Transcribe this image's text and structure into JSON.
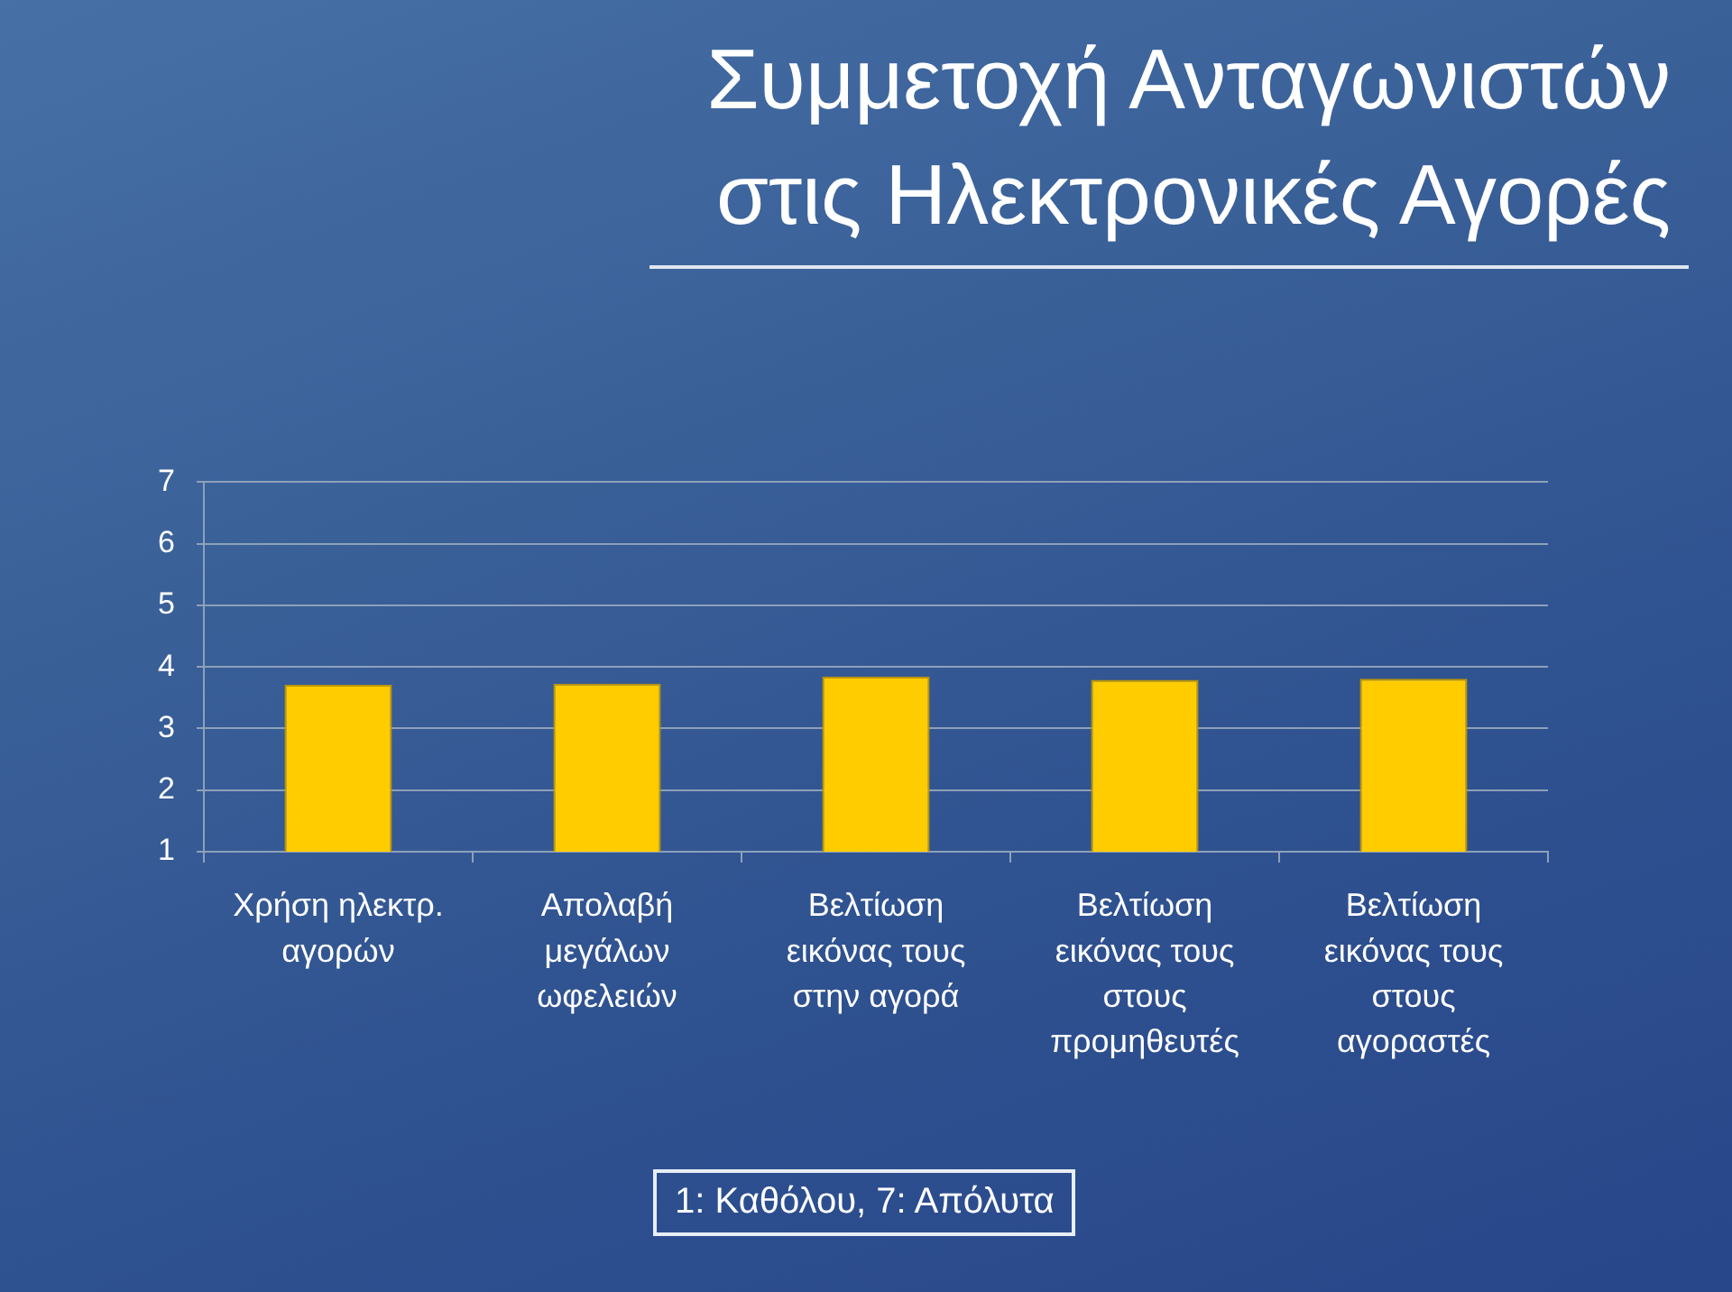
{
  "chart_data": {
    "type": "bar",
    "title": "Συμμετοχή Ανταγωνιστών στις Ηλεκτρονικές Αγορές",
    "categories": [
      "Χρήση ηλεκτρ. αγορών",
      "Απολαβή μεγάλων ωφελειών",
      "Βελτίωση εικόνας τους στην αγορά",
      "Βελτίωση εικόνας τους στους προμηθευτές",
      "Βελτίωση εικόνας τους στους αγοραστές"
    ],
    "values": [
      3.71,
      3.73,
      3.84,
      3.79,
      3.81
    ],
    "color": "#ffcc00",
    "ylim": [
      1,
      7
    ],
    "yticks": [
      1,
      2,
      3,
      4,
      5,
      6,
      7
    ],
    "grid": "y",
    "annotations": [
      "1: Καθόλου, 7: Απόλυτα"
    ]
  }
}
